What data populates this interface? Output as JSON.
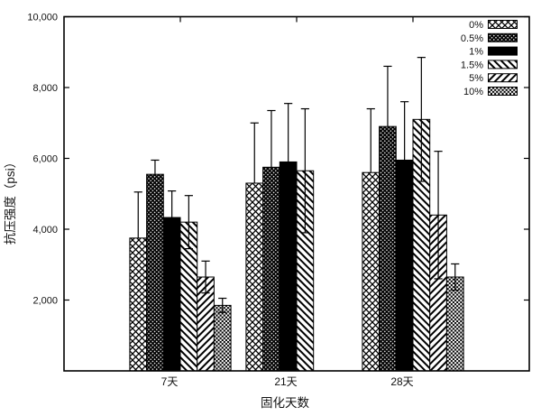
{
  "chart_data": {
    "type": "bar",
    "title": "",
    "xlabel": "固化天数",
    "ylabel": "抗压强度（psi）",
    "ylim": [
      0,
      10000
    ],
    "yticks": [
      2000,
      4000,
      6000,
      8000,
      10000
    ],
    "ytick_labels": [
      "2,000",
      "4,000",
      "6,000",
      "8,000",
      "10,000"
    ],
    "categories": [
      "7天",
      "21天",
      "28天"
    ],
    "grid": "off",
    "legend_position": "top-right-inside",
    "bar_outline_color": "#000000",
    "background_color": "#ffffff",
    "error_bars": true,
    "series": [
      {
        "name": "0%",
        "pattern": "diamond-crosshatch",
        "values": [
          3750,
          5300,
          5600
        ],
        "errors": [
          1300,
          1700,
          1800
        ],
        "lower_whisker": false
      },
      {
        "name": "0.5%",
        "pattern": "dense-crosshatch",
        "values": [
          5550,
          5750,
          6900
        ],
        "errors": [
          400,
          1600,
          1700
        ],
        "lower_whisker": false
      },
      {
        "name": "1%",
        "pattern": "solid-black",
        "values": [
          4330,
          5900,
          5950
        ],
        "errors": [
          750,
          1650,
          1650
        ],
        "lower_whisker": false
      },
      {
        "name": "1.5%",
        "pattern": "diagonal-back",
        "values": [
          4200,
          5650,
          7100
        ],
        "errors": [
          750,
          1750,
          1750
        ],
        "lower_whisker": true
      },
      {
        "name": "5%",
        "pattern": "diagonal-forward",
        "values": [
          2650,
          null,
          4400
        ],
        "errors": [
          450,
          null,
          1800
        ],
        "lower_whisker": true
      },
      {
        "name": "10%",
        "pattern": "fine-checker",
        "values": [
          1850,
          null,
          2650
        ],
        "errors": [
          200,
          null,
          370
        ],
        "lower_whisker": true
      }
    ]
  }
}
